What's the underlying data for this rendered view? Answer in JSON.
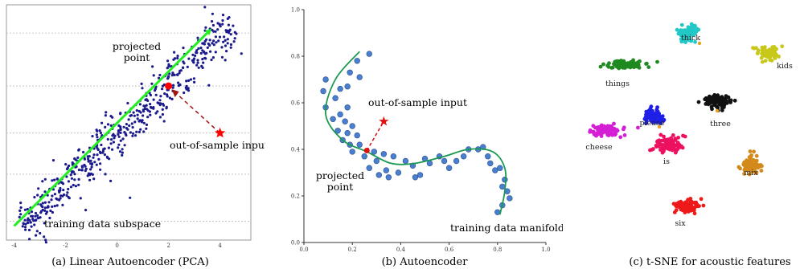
{
  "chart_data": [
    {
      "type": "scatter",
      "caption": "(a) Linear Autoencoder (PCA)",
      "xlim": [
        -4.3,
        5.2
      ],
      "ylim": [
        -4.5,
        5.5
      ],
      "xticks": [
        "-4",
        "-2",
        "0",
        "2",
        "4"
      ],
      "grid": "horizontal dotted",
      "subspace_line": {
        "from": [
          -4.0,
          -3.9
        ],
        "to": [
          3.5,
          4.3
        ],
        "color": "#22ee22"
      },
      "projected_point": {
        "x": 2.0,
        "y": 2.05,
        "label": "projected\npoint",
        "color": "#ff0000"
      },
      "out_of_sample_point": {
        "x": 4.0,
        "y": 0.05,
        "label": "out-of-sample input",
        "color": "#ff0000"
      },
      "subspace_label": "training data subspace",
      "point_color": "#1a1a8c",
      "n_points": 520
    },
    {
      "type": "scatter",
      "caption": "(b) Autoencoder",
      "xlim": [
        0.0,
        1.0
      ],
      "ylim": [
        0.0,
        1.0
      ],
      "xticks": [
        "0.0",
        "0.2",
        "0.4",
        "0.6",
        "0.8",
        "1.0"
      ],
      "yticks": [
        "0.0",
        "0.2",
        "0.4",
        "0.6",
        "0.8",
        "1.0"
      ],
      "manifold_curve": [
        [
          0.23,
          0.82
        ],
        [
          0.13,
          0.7
        ],
        [
          0.09,
          0.55
        ],
        [
          0.16,
          0.44
        ],
        [
          0.26,
          0.39
        ],
        [
          0.36,
          0.34
        ],
        [
          0.46,
          0.34
        ],
        [
          0.58,
          0.37
        ],
        [
          0.68,
          0.4
        ],
        [
          0.78,
          0.39
        ],
        [
          0.83,
          0.32
        ],
        [
          0.83,
          0.22
        ],
        [
          0.81,
          0.12
        ]
      ],
      "points": [
        [
          0.27,
          0.81
        ],
        [
          0.22,
          0.78
        ],
        [
          0.19,
          0.73
        ],
        [
          0.23,
          0.71
        ],
        [
          0.18,
          0.67
        ],
        [
          0.15,
          0.66
        ],
        [
          0.09,
          0.7
        ],
        [
          0.08,
          0.65
        ],
        [
          0.13,
          0.62
        ],
        [
          0.09,
          0.58
        ],
        [
          0.18,
          0.58
        ],
        [
          0.15,
          0.55
        ],
        [
          0.12,
          0.53
        ],
        [
          0.17,
          0.52
        ],
        [
          0.2,
          0.5
        ],
        [
          0.14,
          0.48
        ],
        [
          0.18,
          0.47
        ],
        [
          0.22,
          0.46
        ],
        [
          0.16,
          0.44
        ],
        [
          0.19,
          0.42
        ],
        [
          0.23,
          0.42
        ],
        [
          0.2,
          0.39
        ],
        [
          0.25,
          0.37
        ],
        [
          0.29,
          0.39
        ],
        [
          0.33,
          0.38
        ],
        [
          0.37,
          0.37
        ],
        [
          0.3,
          0.35
        ],
        [
          0.27,
          0.32
        ],
        [
          0.31,
          0.29
        ],
        [
          0.34,
          0.31
        ],
        [
          0.35,
          0.28
        ],
        [
          0.39,
          0.3
        ],
        [
          0.42,
          0.35
        ],
        [
          0.45,
          0.33
        ],
        [
          0.46,
          0.28
        ],
        [
          0.48,
          0.29
        ],
        [
          0.5,
          0.36
        ],
        [
          0.52,
          0.34
        ],
        [
          0.56,
          0.37
        ],
        [
          0.58,
          0.35
        ],
        [
          0.6,
          0.32
        ],
        [
          0.63,
          0.35
        ],
        [
          0.66,
          0.37
        ],
        [
          0.68,
          0.4
        ],
        [
          0.72,
          0.4
        ],
        [
          0.74,
          0.41
        ],
        [
          0.76,
          0.37
        ],
        [
          0.77,
          0.34
        ],
        [
          0.79,
          0.31
        ],
        [
          0.81,
          0.32
        ],
        [
          0.83,
          0.27
        ],
        [
          0.82,
          0.24
        ],
        [
          0.84,
          0.22
        ],
        [
          0.85,
          0.19
        ],
        [
          0.82,
          0.16
        ],
        [
          0.8,
          0.13
        ]
      ],
      "point_color": "#4a7fcf",
      "projected_point": {
        "x": 0.26,
        "y": 0.395,
        "label": "projected\npoint",
        "color": "#e01010"
      },
      "out_of_sample_point": {
        "x": 0.33,
        "y": 0.52,
        "label": "out-of-sample input",
        "color": "#e01010"
      },
      "manifold_label": "training data manifold",
      "curve_color": "#1a9a50"
    },
    {
      "type": "scatter",
      "caption": "(c) t-SNE for acoustic features",
      "clusters": [
        {
          "label": "thick",
          "color": "#22c8c8",
          "center": [
            155,
            42
          ],
          "spread": [
            14,
            12
          ],
          "n": 90
        },
        {
          "label": "kids",
          "color": "#c8c81a",
          "center": [
            256,
            66
          ],
          "spread": [
            16,
            9
          ],
          "n": 90
        },
        {
          "label": "things",
          "color": "#1f8a1f",
          "center": [
            78,
            81
          ],
          "spread": [
            26,
            7
          ],
          "n": 90
        },
        {
          "label": "three",
          "color": "#111111",
          "center": [
            192,
            126
          ],
          "spread": [
            20,
            10
          ],
          "n": 90
        },
        {
          "label": "please",
          "color": "#1f1fe8",
          "center": [
            113,
            145
          ],
          "spread": [
            13,
            12
          ],
          "n": 80
        },
        {
          "label": "cheese",
          "color": "#d41fd4",
          "center": [
            53,
            162
          ],
          "spread": [
            24,
            8
          ],
          "n": 90
        },
        {
          "label": "is",
          "color": "#ee1060",
          "center": [
            131,
            180
          ],
          "spread": [
            19,
            11
          ],
          "n": 90
        },
        {
          "label": "mix",
          "color": "#d48a1a",
          "center": [
            234,
            206
          ],
          "spread": [
            13,
            14
          ],
          "n": 80
        },
        {
          "label": "six",
          "color": "#ee1a1a",
          "center": [
            153,
            256
          ],
          "spread": [
            18,
            10
          ],
          "n": 90
        }
      ]
    }
  ]
}
